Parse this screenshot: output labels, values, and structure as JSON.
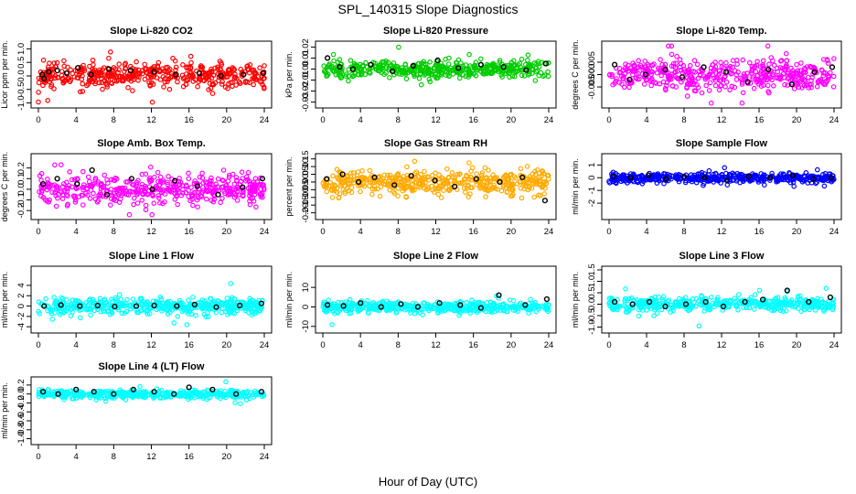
{
  "title": "SPL_140315  Slope Diagnostics",
  "xlabel": "Hour of Day (UTC)",
  "chart_data": [
    {
      "type": "scatter",
      "title": "Slope Li-820 CO2",
      "ylabel": "Licor ppm per min.",
      "color": "#ff0000",
      "xlim": [
        0,
        24
      ],
      "xticks": [
        0,
        4,
        8,
        12,
        16,
        20,
        24
      ],
      "ylim": [
        -1.05,
        1.15
      ],
      "yticks": [
        -1.0,
        -0.5,
        0.0,
        0.5,
        1.0
      ],
      "ytick_labels": [
        "-1.0",
        "-0.5",
        "0.0",
        "0.5",
        "1.0"
      ],
      "spread": 0.3,
      "seed": 11,
      "series": [
        {
          "x": [
            0.4,
            0.6,
            1.1,
            2.0,
            3.0,
            4.2,
            5.6,
            7.5,
            9.8,
            12.3,
            14.6,
            17.1,
            19.4,
            21.8,
            23.9
          ],
          "y": [
            0.05,
            -0.1,
            0.15,
            0.2,
            0.1,
            0.3,
            0.05,
            0.25,
            0.2,
            0.15,
            0.05,
            0.1,
            0.0,
            0.05,
            0.1
          ],
          "color": "#000000"
        }
      ]
    },
    {
      "type": "scatter",
      "title": "Slope Li-820 Pressure",
      "ylabel": "kPa per min.",
      "color": "#00cc00",
      "xlim": [
        0,
        24
      ],
      "xticks": [
        0,
        4,
        8,
        12,
        16,
        20,
        24
      ],
      "ylim": [
        -0.032,
        0.022
      ],
      "yticks": [
        -0.03,
        -0.02,
        -0.01,
        0.0,
        0.01,
        0.02
      ],
      "ytick_labels": [
        "-0.03",
        "-0.02",
        "-0.01",
        "0.00",
        "0.01",
        "0.02"
      ],
      "spread": 0.005,
      "seed": 23,
      "series": [
        {
          "x": [
            0.5,
            1.8,
            3.2,
            5.1,
            7.4,
            9.6,
            12.2,
            14.4,
            16.8,
            19.2,
            21.6,
            23.7
          ],
          "y": [
            0.01,
            0.002,
            0.0,
            0.004,
            -0.002,
            0.003,
            0.008,
            0.001,
            0.004,
            0.002,
            -0.001,
            0.005
          ],
          "color": "#000000"
        }
      ]
    },
    {
      "type": "scatter",
      "title": "Slope Li-820 Temp.",
      "ylabel": "degrees C per min.",
      "color": "#ff00ff",
      "xlim": [
        0,
        24
      ],
      "xticks": [
        0,
        4,
        8,
        12,
        16,
        20,
        24
      ],
      "ylim": [
        -0.012,
        0.012
      ],
      "yticks": [
        -0.005,
        0.0,
        0.005
      ],
      "ytick_labels": [
        "-0.005",
        "0.000",
        "0.005"
      ],
      "spread": 0.004,
      "seed": 37,
      "series": [
        {
          "x": [
            0.6,
            2.2,
            3.9,
            6.0,
            7.8,
            10.1,
            12.5,
            14.8,
            17.0,
            19.5,
            21.9,
            23.8
          ],
          "y": [
            0.004,
            -0.002,
            0.0,
            0.002,
            -0.001,
            0.003,
            0.001,
            -0.003,
            0.002,
            -0.004,
            0.001,
            0.003
          ],
          "color": "#000000"
        }
      ]
    },
    {
      "type": "scatter",
      "title": "Slope Amb. Box Temp.",
      "ylabel": "degrees C per min.",
      "color": "#ff00ff",
      "xlim": [
        0,
        24
      ],
      "xticks": [
        0,
        4,
        8,
        12,
        16,
        20,
        24
      ],
      "ylim": [
        -0.25,
        0.3
      ],
      "yticks": [
        -0.2,
        -0.1,
        0.0,
        0.1,
        0.2
      ],
      "ytick_labels": [
        "-0.2",
        "-0.1",
        "0.0",
        "0.1",
        "0.2"
      ],
      "spread": 0.09,
      "seed": 41,
      "series": [
        {
          "x": [
            0.5,
            2.0,
            4.1,
            5.7,
            7.3,
            9.9,
            12.1,
            14.5,
            16.9,
            19.1,
            21.7,
            23.8
          ],
          "y": [
            0.05,
            0.1,
            0.05,
            0.18,
            -0.05,
            0.1,
            0.0,
            0.08,
            0.03,
            -0.05,
            0.02,
            0.1
          ],
          "color": "#000000"
        }
      ]
    },
    {
      "type": "scatter",
      "title": "Slope Gas Stream RH",
      "ylabel": "percent per min.",
      "color": "#ffaa00",
      "xlim": [
        0,
        24
      ],
      "xticks": [
        0,
        4,
        8,
        12,
        16,
        20,
        24
      ],
      "ylim": [
        -0.22,
        0.16
      ],
      "yticks": [
        -0.2,
        -0.15,
        -0.1,
        -0.05,
        0.0,
        0.05,
        0.1,
        0.15
      ],
      "ytick_labels": [
        "-0.20",
        "-0.15",
        "-0.10",
        "-0.05",
        "0.00",
        "0.05",
        "0.10",
        "0.15"
      ],
      "spread": 0.055,
      "seed": 53,
      "series": [
        {
          "x": [
            0.4,
            2.1,
            3.8,
            5.5,
            7.6,
            9.4,
            11.9,
            14.0,
            16.3,
            18.8,
            21.2,
            23.6
          ],
          "y": [
            0.02,
            0.05,
            0.0,
            0.03,
            -0.02,
            0.04,
            0.01,
            -0.03,
            0.02,
            0.0,
            0.03,
            -0.12
          ],
          "color": "#000000"
        }
      ]
    },
    {
      "type": "scatter",
      "title": "Slope Sample Flow",
      "ylabel": "ml/min per min.",
      "color": "#0000ff",
      "xlim": [
        0,
        24
      ],
      "xticks": [
        0,
        4,
        8,
        12,
        16,
        20,
        24
      ],
      "ylim": [
        -3.0,
        1.6
      ],
      "yticks": [
        -2,
        -1,
        0,
        1
      ],
      "ytick_labels": [
        "-2",
        "-1",
        "0",
        "1"
      ],
      "spread": 0.25,
      "seed": 67,
      "series": [
        {
          "x": [
            0.5,
            2.3,
            4.2,
            6.1,
            8.0,
            10.2,
            12.6,
            14.9,
            17.2,
            19.6,
            21.8,
            23.7
          ],
          "y": [
            0.1,
            0.0,
            0.2,
            -0.1,
            0.1,
            0.0,
            -0.2,
            0.1,
            0.0,
            0.2,
            -0.1,
            0.0
          ],
          "color": "#000000"
        }
      ]
    },
    {
      "type": "scatter",
      "title": "Slope Line 1 Flow",
      "ylabel": "ml/min per min.",
      "color": "#00ffff",
      "xlim": [
        0,
        24
      ],
      "xticks": [
        0,
        4,
        8,
        12,
        16,
        20,
        24
      ],
      "ylim": [
        -4.5,
        7.0
      ],
      "yticks": [
        -4,
        -2,
        0,
        2,
        4
      ],
      "ytick_labels": [
        "-4",
        "-2",
        "0",
        "2",
        "4"
      ],
      "spread": 1.0,
      "seed": 71,
      "series": [
        {
          "x": [
            0.6,
            2.4,
            4.4,
            6.3,
            8.1,
            10.4,
            12.3,
            14.7,
            16.6,
            18.9,
            21.4,
            23.7
          ],
          "y": [
            0.0,
            0.2,
            0.0,
            0.1,
            -0.1,
            0.0,
            0.1,
            0.0,
            0.3,
            -0.2,
            0.1,
            0.5
          ],
          "color": "#000000"
        }
      ]
    },
    {
      "type": "scatter",
      "title": "Slope Line 2 Flow",
      "ylabel": "ml/min per min.",
      "color": "#00ffff",
      "xlim": [
        0,
        24
      ],
      "xticks": [
        0,
        4,
        8,
        12,
        16,
        20,
        24
      ],
      "ylim": [
        -11.5,
        19.0
      ],
      "yticks": [
        -10,
        0,
        10
      ],
      "ytick_labels": [
        "-10",
        "0",
        "10"
      ],
      "spread": 2.0,
      "seed": 83,
      "series": [
        {
          "x": [
            0.5,
            2.2,
            4.0,
            6.2,
            8.3,
            10.1,
            12.4,
            14.6,
            16.8,
            18.7,
            21.5,
            23.8
          ],
          "y": [
            1.0,
            0.5,
            2.0,
            0.0,
            1.5,
            0.0,
            2.0,
            1.0,
            -0.5,
            6.0,
            1.0,
            4.0
          ],
          "color": "#000000"
        }
      ]
    },
    {
      "type": "scatter",
      "title": "Slope Line 3 Flow",
      "ylabel": "ml/min per min.",
      "color": "#00ffff",
      "xlim": [
        0,
        24
      ],
      "xticks": [
        0,
        4,
        8,
        12,
        16,
        20,
        24
      ],
      "ylim": [
        -1.1,
        1.5
      ],
      "yticks": [
        -1.0,
        -0.5,
        0.0,
        0.5,
        1.0,
        1.5
      ],
      "ytick_labels": [
        "-1.0",
        "-0.5",
        "0.0",
        "0.5",
        "1.0",
        "1.5"
      ],
      "spread": 0.2,
      "seed": 97,
      "series": [
        {
          "x": [
            0.6,
            2.5,
            4.3,
            6.0,
            8.2,
            10.3,
            12.2,
            14.5,
            16.4,
            19.0,
            21.3,
            23.6
          ],
          "y": [
            0.1,
            0.0,
            0.1,
            -0.1,
            0.0,
            0.1,
            -0.1,
            0.1,
            0.2,
            0.6,
            0.1,
            0.3
          ],
          "color": "#000000"
        }
      ]
    },
    {
      "type": "scatter",
      "title": "Slope Line 4 (LT) Flow",
      "ylabel": "ml/min per min.",
      "color": "#00ffff",
      "xlim": [
        0,
        24
      ],
      "xticks": [
        0,
        4,
        8,
        12,
        16,
        20,
        24
      ],
      "ylim": [
        -1.05,
        0.3
      ],
      "yticks": [
        -1.0,
        -0.8,
        -0.6,
        -0.4,
        -0.2,
        0.0,
        0.2
      ],
      "ytick_labels": [
        "-1.0",
        "-0.8",
        "-0.6",
        "-0.4",
        "-0.2",
        "0.0",
        "0.2"
      ],
      "spread": 0.06,
      "seed": 101,
      "series": [
        {
          "x": [
            0.5,
            2.1,
            4.0,
            5.9,
            8.0,
            10.1,
            12.3,
            14.4,
            16.0,
            18.5,
            21.0,
            23.7
          ],
          "y": [
            0.05,
            0.0,
            0.1,
            0.05,
            0.0,
            0.1,
            0.05,
            0.0,
            0.15,
            0.1,
            0.0,
            0.05
          ],
          "color": "#000000"
        }
      ]
    }
  ]
}
